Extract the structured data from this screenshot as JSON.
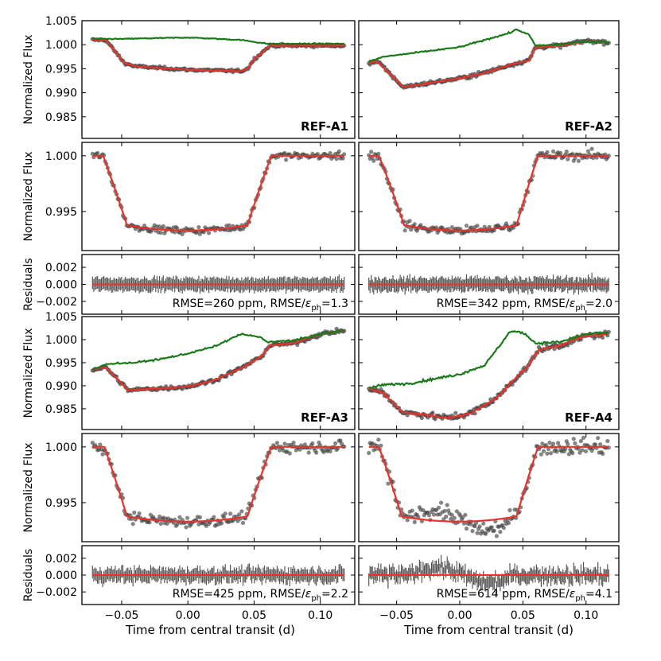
{
  "figure": {
    "xlabel": "Time from central transit (d)",
    "panel_ylabels": {
      "raw": "Normalized Flux",
      "detrended": "Normalized Flux",
      "residuals": "Residuals"
    }
  },
  "chart_data": [
    {
      "name": "REF-A1",
      "label": "REF-A1",
      "type": "line",
      "x_range": [
        -0.072,
        0.118
      ],
      "x_ticks": [
        -0.05,
        0.0,
        0.05,
        0.1
      ],
      "x_tick_labels": [
        "−0.05",
        "0.00",
        "0.05",
        "0.10"
      ],
      "raw": {
        "ylim": [
          0.9805,
          1.005
        ],
        "yticks": [
          0.985,
          0.99,
          0.995,
          1.0,
          1.005
        ],
        "ytick_labels": [
          "0.985",
          "0.990",
          "0.995",
          "1.000",
          "1.005"
        ],
        "series": [
          {
            "name": "systematics trend",
            "color": "#1a7a1a",
            "x": [
              -0.072,
              -0.05,
              0.0,
              0.04,
              0.06,
              0.118
            ],
            "y": [
              1.0012,
              1.0012,
              1.0015,
              1.001,
              1.0002,
              1.0002
            ]
          },
          {
            "name": "data",
            "style": "scatter",
            "color": "#444444",
            "x": [
              -0.072,
              -0.062,
              -0.048,
              -0.04,
              0.0,
              0.04,
              0.045,
              0.05,
              0.062,
              0.118
            ],
            "y": [
              1.001,
              1.001,
              0.9962,
              0.9955,
              0.9948,
              0.9945,
              0.995,
              0.997,
              0.9998,
              0.9998
            ]
          },
          {
            "name": "model",
            "color": "#e8322a",
            "x": [
              -0.072,
              -0.062,
              -0.048,
              -0.04,
              0.0,
              0.04,
              0.045,
              0.05,
              0.062,
              0.118
            ],
            "y": [
              1.001,
              1.001,
              0.9962,
              0.9955,
              0.9948,
              0.9945,
              0.995,
              0.997,
              0.9998,
              0.9998
            ]
          }
        ]
      },
      "detrended": {
        "ylim": [
          0.9915,
          1.0012
        ],
        "yticks": [
          0.995,
          1.0
        ],
        "ytick_labels": [
          "0.995",
          "1.000"
        ],
        "transit": {
          "depth": 0.0067,
          "t1": -0.064,
          "t2": -0.046,
          "t3": 0.045,
          "t4": 0.063
        }
      },
      "residuals": {
        "ylim": [
          -0.0035,
          0.0035
        ],
        "yticks": [
          -0.002,
          0.0,
          0.002
        ],
        "ytick_labels": [
          "−0.002",
          "0.000",
          "0.002"
        ],
        "rmse_ppm": 260,
        "rmse_ratio": 1.3,
        "annotation": {
          "prefix": "RMSE=260 ppm, RMSE/",
          "symbol": "ε",
          "subscript": "ph",
          "suffix": "=1.3"
        }
      }
    },
    {
      "name": "REF-A2",
      "label": "REF-A2",
      "type": "line",
      "x_range": [
        -0.072,
        0.118
      ],
      "x_ticks": [
        -0.05,
        0.0,
        0.05,
        0.1
      ],
      "x_tick_labels": [
        "−0.05",
        "0.00",
        "0.05",
        "0.10"
      ],
      "raw": {
        "ylim": [
          0.9805,
          1.005
        ],
        "yticks": [
          0.985,
          0.99,
          0.995,
          1.0,
          1.005
        ],
        "ytick_labels": [
          "0.985",
          "0.990",
          "0.995",
          "1.000",
          "1.005"
        ],
        "series": [
          {
            "name": "systematics trend",
            "color": "#1a7a1a",
            "x": [
              -0.072,
              -0.06,
              -0.03,
              0.0,
              0.02,
              0.04,
              0.045,
              0.055,
              0.06,
              0.08,
              0.1,
              0.118
            ],
            "y": [
              0.9965,
              0.9975,
              0.9985,
              0.9995,
              1.001,
              1.0025,
              1.0032,
              1.002,
              0.9998,
              1.0,
              1.0008,
              1.0005
            ]
          },
          {
            "name": "data",
            "style": "scatter",
            "color": "#444444",
            "x": [
              -0.072,
              -0.065,
              -0.045,
              -0.03,
              0.0,
              0.02,
              0.04,
              0.055,
              0.06,
              0.08,
              0.1,
              0.118
            ],
            "y": [
              0.9962,
              0.9965,
              0.9912,
              0.9918,
              0.993,
              0.9942,
              0.9958,
              0.9968,
              0.9995,
              0.9998,
              1.0008,
              1.0005
            ]
          },
          {
            "name": "model",
            "color": "#e8322a",
            "x": [
              -0.072,
              -0.065,
              -0.045,
              -0.03,
              0.0,
              0.02,
              0.04,
              0.055,
              0.06,
              0.08,
              0.1,
              0.118
            ],
            "y": [
              0.9962,
              0.9965,
              0.9912,
              0.9918,
              0.993,
              0.9942,
              0.9958,
              0.9968,
              0.9995,
              0.9998,
              1.0008,
              1.0005
            ]
          }
        ]
      },
      "detrended": {
        "ylim": [
          0.9915,
          1.0012
        ],
        "yticks": [
          0.995,
          1.0
        ],
        "ytick_labels": [
          "0.995",
          "1.000"
        ],
        "transit": {
          "depth": 0.0067,
          "t1": -0.064,
          "t2": -0.044,
          "t3": 0.045,
          "t4": 0.062
        }
      },
      "residuals": {
        "ylim": [
          -0.0035,
          0.0035
        ],
        "yticks": [
          -0.002,
          0.0,
          0.002
        ],
        "ytick_labels": [
          "−0.002",
          "0.000",
          "0.002"
        ],
        "rmse_ppm": 342,
        "rmse_ratio": 2.0,
        "annotation": {
          "prefix": "RMSE=342 ppm, RMSE/",
          "symbol": "ε",
          "subscript": "ph",
          "suffix": "=2.0"
        }
      }
    },
    {
      "name": "REF-A3",
      "label": "REF-A3",
      "type": "line",
      "x_range": [
        -0.072,
        0.118
      ],
      "x_ticks": [
        -0.05,
        0.0,
        0.05,
        0.1
      ],
      "x_tick_labels": [
        "−0.05",
        "0.00",
        "0.05",
        "0.10"
      ],
      "raw": {
        "ylim": [
          0.9805,
          1.005
        ],
        "yticks": [
          0.985,
          0.99,
          0.995,
          1.0,
          1.005
        ],
        "ytick_labels": [
          "0.985",
          "0.990",
          "0.995",
          "1.000",
          "1.005"
        ],
        "series": [
          {
            "name": "systematics trend",
            "color": "#1a7a1a",
            "x": [
              -0.072,
              -0.06,
              -0.04,
              -0.02,
              0.0,
              0.02,
              0.04,
              0.055,
              0.06,
              0.08,
              0.1,
              0.118
            ],
            "y": [
              0.9935,
              0.9948,
              0.995,
              0.9958,
              0.997,
              0.9985,
              1.0012,
              1.0005,
              0.9995,
              0.9998,
              1.0012,
              1.002
            ]
          },
          {
            "name": "data",
            "style": "scatter",
            "color": "#444444",
            "x": [
              -0.072,
              -0.062,
              -0.045,
              -0.03,
              0.0,
              0.02,
              0.04,
              0.055,
              0.062,
              0.08,
              0.1,
              0.118
            ],
            "y": [
              0.9935,
              0.994,
              0.989,
              0.9893,
              0.9898,
              0.9912,
              0.9938,
              0.9962,
              0.9988,
              0.9992,
              1.0012,
              1.002
            ]
          },
          {
            "name": "model",
            "color": "#e8322a",
            "x": [
              -0.072,
              -0.062,
              -0.045,
              -0.03,
              0.0,
              0.02,
              0.04,
              0.055,
              0.062,
              0.08,
              0.1,
              0.118
            ],
            "y": [
              0.9935,
              0.994,
              0.989,
              0.9893,
              0.9898,
              0.9912,
              0.9938,
              0.9962,
              0.9988,
              0.9992,
              1.0012,
              1.002
            ]
          }
        ]
      },
      "detrended": {
        "ylim": [
          0.9915,
          1.0012
        ],
        "yticks": [
          0.995,
          1.0
        ],
        "ytick_labels": [
          "0.995",
          "1.000"
        ],
        "transit": {
          "depth": 0.0067,
          "t1": -0.063,
          "t2": -0.046,
          "t3": 0.045,
          "t4": 0.063
        }
      },
      "residuals": {
        "ylim": [
          -0.0035,
          0.0035
        ],
        "yticks": [
          -0.002,
          0.0,
          0.002
        ],
        "ytick_labels": [
          "−0.002",
          "0.000",
          "0.002"
        ],
        "rmse_ppm": 425,
        "rmse_ratio": 2.2,
        "annotation": {
          "prefix": "RMSE=425 ppm, RMSE/",
          "symbol": "ε",
          "subscript": "ph",
          "suffix": "=2.2"
        }
      }
    },
    {
      "name": "REF-A4",
      "label": "REF-A4",
      "type": "line",
      "x_range": [
        -0.072,
        0.118
      ],
      "x_ticks": [
        -0.05,
        0.0,
        0.05,
        0.1
      ],
      "x_tick_labels": [
        "−0.05",
        "0.00",
        "0.05",
        "0.10"
      ],
      "raw": {
        "ylim": [
          0.9805,
          1.005
        ],
        "yticks": [
          0.985,
          0.99,
          0.995,
          1.0,
          1.005
        ],
        "ytick_labels": [
          "0.985",
          "0.990",
          "0.995",
          "1.000",
          "1.005"
        ],
        "series": [
          {
            "name": "systematics trend",
            "color": "#1a7a1a",
            "x": [
              -0.072,
              -0.06,
              -0.04,
              -0.02,
              0.0,
              0.02,
              0.04,
              0.05,
              0.055,
              0.06,
              0.08,
              0.1,
              0.118
            ],
            "y": [
              0.9895,
              0.9902,
              0.9905,
              0.9915,
              0.9925,
              0.9945,
              1.0018,
              1.0015,
              1.0005,
              0.9992,
              0.9995,
              1.0012,
              1.0015
            ]
          },
          {
            "name": "data",
            "style": "scatter",
            "color": "#444444",
            "x": [
              -0.072,
              -0.062,
              -0.045,
              -0.03,
              -0.01,
              0.0,
              0.01,
              0.03,
              0.04,
              0.055,
              0.062,
              0.08,
              0.1,
              0.118
            ],
            "y": [
              0.9892,
              0.9888,
              0.9842,
              0.9838,
              0.983,
              0.9835,
              0.9842,
              0.9875,
              0.9905,
              0.9945,
              0.9978,
              0.9988,
              1.0008,
              1.0012
            ]
          },
          {
            "name": "model",
            "color": "#e8322a",
            "x": [
              -0.072,
              -0.062,
              -0.045,
              -0.03,
              -0.01,
              0.0,
              0.01,
              0.03,
              0.04,
              0.055,
              0.062,
              0.08,
              0.1,
              0.118
            ],
            "y": [
              0.9892,
              0.9888,
              0.9842,
              0.9838,
              0.983,
              0.9835,
              0.9842,
              0.9875,
              0.9905,
              0.9945,
              0.9978,
              0.9988,
              1.0008,
              1.0012
            ]
          }
        ]
      },
      "detrended": {
        "ylim": [
          0.9915,
          1.0012
        ],
        "yticks": [
          0.995,
          1.0
        ],
        "ytick_labels": [
          "0.995",
          "1.000"
        ],
        "transit": {
          "depth": 0.0067,
          "t1": -0.064,
          "t2": -0.046,
          "t3": 0.045,
          "t4": 0.062
        }
      },
      "residuals": {
        "ylim": [
          -0.0035,
          0.0035
        ],
        "yticks": [
          -0.002,
          0.0,
          0.002
        ],
        "ytick_labels": [
          "−0.002",
          "0.000",
          "0.002"
        ],
        "rmse_ppm": 614,
        "rmse_ratio": 4.1,
        "annotation": {
          "prefix": "RMSE=614 ppm, RMSE/",
          "symbol": "ε",
          "subscript": "ph",
          "suffix": "=4.1"
        }
      }
    }
  ]
}
